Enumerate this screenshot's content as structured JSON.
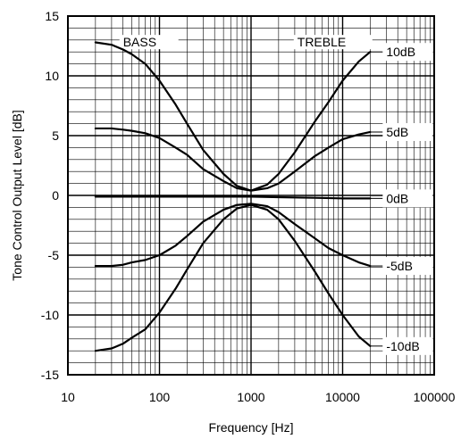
{
  "chart_data": {
    "type": "line",
    "title": "",
    "xlabel": "Frequency [Hz]",
    "ylabel": "Tone Control Output Level [dB]",
    "x_scale": "log",
    "xlim": [
      10,
      100000
    ],
    "ylim": [
      -15,
      15
    ],
    "x_ticks": [
      "10",
      "100",
      "1000",
      "10000",
      "100000"
    ],
    "y_ticks": [
      "15",
      "10",
      "5",
      "0",
      "-5",
      "-10",
      "-15"
    ],
    "grid": true,
    "annotations": [
      "BASS",
      "TREBLE"
    ],
    "series": [
      {
        "name": "10dB",
        "x": [
          20,
          30,
          40,
          50,
          70,
          100,
          150,
          200,
          300,
          500,
          700,
          1000,
          1500,
          2000,
          3000,
          5000,
          7000,
          10000,
          15000,
          20000
        ],
        "y": [
          12.8,
          12.6,
          12.2,
          11.8,
          11.0,
          9.6,
          7.6,
          6.0,
          3.8,
          1.8,
          0.8,
          0.4,
          0.9,
          1.8,
          3.6,
          6.2,
          7.8,
          9.6,
          11.2,
          12.0
        ]
      },
      {
        "name": "5dB",
        "x": [
          20,
          30,
          40,
          50,
          70,
          100,
          150,
          200,
          300,
          500,
          700,
          1000,
          1500,
          2000,
          3000,
          5000,
          7000,
          10000,
          15000,
          20000
        ],
        "y": [
          5.6,
          5.6,
          5.5,
          5.4,
          5.2,
          4.8,
          4.0,
          3.4,
          2.2,
          1.2,
          0.6,
          0.4,
          0.6,
          1.0,
          2.0,
          3.3,
          4.0,
          4.7,
          5.1,
          5.3
        ]
      },
      {
        "name": "0dB",
        "x": [
          20,
          50,
          100,
          200,
          500,
          1000,
          2000,
          5000,
          10000,
          20000
        ],
        "y": [
          -0.1,
          -0.1,
          -0.1,
          -0.1,
          -0.1,
          -0.1,
          -0.15,
          -0.2,
          -0.25,
          -0.25
        ]
      },
      {
        "name": "-5dB",
        "x": [
          20,
          30,
          40,
          50,
          70,
          100,
          150,
          200,
          300,
          500,
          700,
          1000,
          1500,
          2000,
          3000,
          5000,
          7000,
          10000,
          15000,
          20000
        ],
        "y": [
          -5.9,
          -5.9,
          -5.8,
          -5.6,
          -5.4,
          -5.0,
          -4.2,
          -3.4,
          -2.2,
          -1.2,
          -0.8,
          -0.7,
          -0.9,
          -1.4,
          -2.4,
          -3.6,
          -4.4,
          -5.0,
          -5.6,
          -5.9
        ]
      },
      {
        "name": "-10dB",
        "x": [
          20,
          30,
          40,
          50,
          70,
          100,
          150,
          200,
          300,
          500,
          700,
          1000,
          1500,
          2000,
          3000,
          5000,
          7000,
          10000,
          15000,
          20000
        ],
        "y": [
          -13.0,
          -12.8,
          -12.4,
          -11.9,
          -11.2,
          -9.8,
          -7.8,
          -6.2,
          -4.0,
          -2.0,
          -1.1,
          -0.8,
          -1.2,
          -2.0,
          -3.8,
          -6.4,
          -8.2,
          -10.0,
          -11.8,
          -12.6
        ]
      }
    ]
  }
}
